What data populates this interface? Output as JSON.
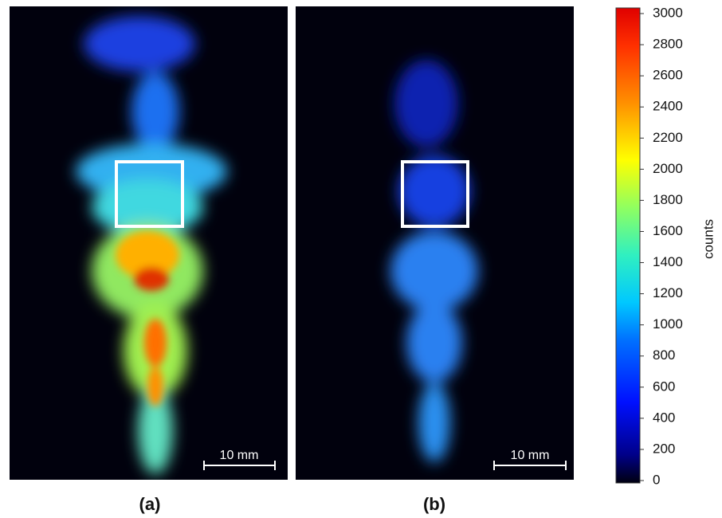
{
  "panels": [
    {
      "label": "(a)",
      "scale_bar": "10 mm"
    },
    {
      "label": "(b)",
      "scale_bar": "10 mm"
    }
  ],
  "colorbar": {
    "label": "counts",
    "lim": [
      0,
      3000
    ],
    "ticks": [
      0,
      200,
      400,
      600,
      800,
      1000,
      1200,
      1400,
      1600,
      1800,
      2000,
      2200,
      2400,
      2600,
      2800,
      3000
    ]
  }
}
